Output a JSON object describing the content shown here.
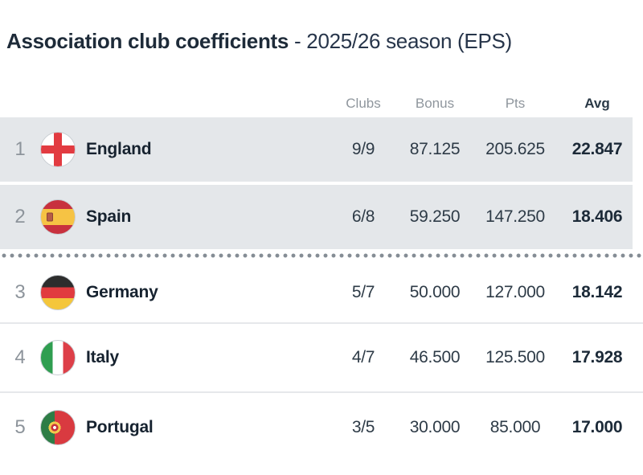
{
  "title": {
    "main": "Association club coefficients",
    "sub": "- 2025/26 season (EPS)"
  },
  "table": {
    "columns": {
      "clubs": "Clubs",
      "bonus": "Bonus",
      "pts": "Pts",
      "avg": "Avg"
    },
    "rows": [
      {
        "rank": "1",
        "country": "England",
        "flag": "england-flag",
        "clubs": "9/9",
        "bonus": "87.125",
        "pts": "205.625",
        "avg": "22.847",
        "highlighted": true
      },
      {
        "rank": "2",
        "country": "Spain",
        "flag": "spain-flag",
        "clubs": "6/8",
        "bonus": "59.250",
        "pts": "147.250",
        "avg": "18.406",
        "highlighted": true
      },
      {
        "rank": "3",
        "country": "Germany",
        "flag": "germany-flag",
        "clubs": "5/7",
        "bonus": "50.000",
        "pts": "127.000",
        "avg": "18.142",
        "highlighted": false
      },
      {
        "rank": "4",
        "country": "Italy",
        "flag": "italy-flag",
        "clubs": "4/7",
        "bonus": "46.500",
        "pts": "125.500",
        "avg": "17.928",
        "highlighted": false
      },
      {
        "rank": "5",
        "country": "Portugal",
        "flag": "portugal-flag",
        "clubs": "3/5",
        "bonus": "30.000",
        "pts": "85.000",
        "avg": "17.000",
        "highlighted": false
      }
    ],
    "separator": "qualification-cutoff-line"
  },
  "colors": {
    "highlight_row_bg": "#e4e7ea",
    "title_text": "#1e2b39",
    "header_text": "#8f969d",
    "value_text": "#2e3b47",
    "cutoff_dot": "#858d95",
    "row_divider": "#e6e8eb"
  }
}
